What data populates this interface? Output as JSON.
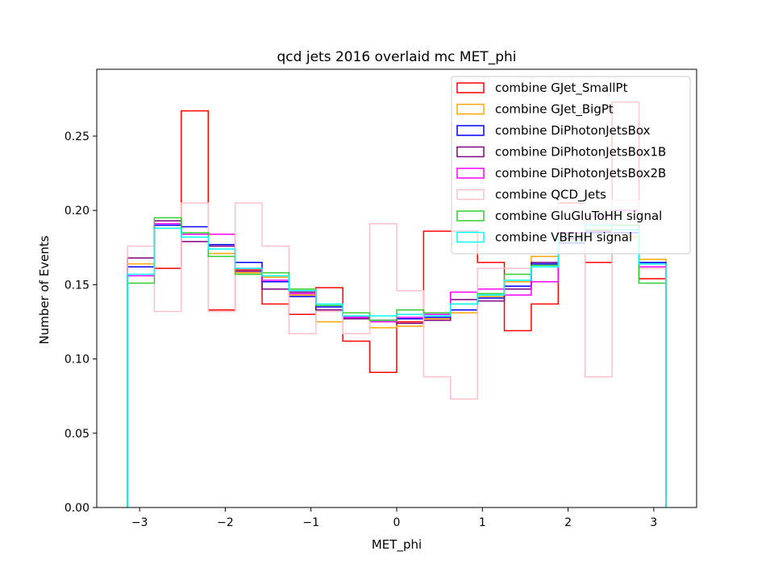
{
  "chart_data": {
    "type": "histogram-step",
    "title": "qcd jets 2016 overlaid mc MET_phi",
    "xlabel": "MET_phi",
    "ylabel": "Number of Events",
    "xlim": [
      -3.5,
      3.5
    ],
    "ylim": [
      0,
      0.295
    ],
    "grid": false,
    "legend_position": "top-right",
    "xticks": [
      -3,
      -2,
      -1,
      0,
      1,
      2,
      3
    ],
    "xtick_labels": [
      "−3",
      "−2",
      "−1",
      "0",
      "1",
      "2",
      "3"
    ],
    "yticks": [
      0.0,
      0.05,
      0.1,
      0.15,
      0.2,
      0.25
    ],
    "ytick_labels": [
      "0.00",
      "0.05",
      "0.10",
      "0.15",
      "0.20",
      "0.25"
    ],
    "bin_edges": [
      -3.1416,
      -2.8274,
      -2.5133,
      -2.1991,
      -1.885,
      -1.5708,
      -1.2566,
      -0.9425,
      -0.6283,
      -0.3142,
      0.0,
      0.3142,
      0.6283,
      0.9425,
      1.2566,
      1.5708,
      1.885,
      2.1991,
      2.5133,
      2.8274,
      3.1416
    ],
    "series": [
      {
        "name": "combine GJet_SmallPt",
        "color": "#ff0000",
        "values": [
          0.168,
          0.161,
          0.267,
          0.133,
          0.16,
          0.137,
          0.13,
          0.148,
          0.112,
          0.091,
          0.125,
          0.186,
          0.186,
          0.165,
          0.119,
          0.137,
          0.205,
          0.165,
          0.273,
          0.154
        ]
      },
      {
        "name": "combine GJet_BigPt",
        "color": "#ffa500",
        "values": [
          0.164,
          0.188,
          0.184,
          0.171,
          0.158,
          0.155,
          0.143,
          0.125,
          0.128,
          0.121,
          0.122,
          0.127,
          0.131,
          0.142,
          0.152,
          0.169,
          0.178,
          0.19,
          0.182,
          0.167
        ]
      },
      {
        "name": "combine DiPhotonJetsBox",
        "color": "#0000ff",
        "values": [
          0.162,
          0.19,
          0.189,
          0.177,
          0.165,
          0.152,
          0.142,
          0.135,
          0.128,
          0.126,
          0.127,
          0.128,
          0.133,
          0.141,
          0.149,
          0.164,
          0.178,
          0.185,
          0.185,
          0.165
        ]
      },
      {
        "name": "combine DiPhotonJetsBox1B",
        "color": "#800080",
        "values": [
          0.168,
          0.193,
          0.179,
          0.176,
          0.159,
          0.147,
          0.145,
          0.133,
          0.127,
          0.126,
          0.124,
          0.126,
          0.14,
          0.139,
          0.147,
          0.165,
          0.181,
          0.186,
          0.187,
          0.164
        ]
      },
      {
        "name": "combine DiPhotonJetsBox2B",
        "color": "#ff00ff",
        "values": [
          0.156,
          0.191,
          0.184,
          0.184,
          0.161,
          0.153,
          0.144,
          0.136,
          0.128,
          0.125,
          0.128,
          0.13,
          0.145,
          0.147,
          0.143,
          0.152,
          0.185,
          0.196,
          0.2,
          0.162
        ]
      },
      {
        "name": "combine QCD_Jets",
        "color": "#ffc0cb",
        "values": [
          0.176,
          0.132,
          0.205,
          0.132,
          0.205,
          0.176,
          0.117,
          0.132,
          0.117,
          0.191,
          0.146,
          0.088,
          0.073,
          0.161,
          0.161,
          0.162,
          0.23,
          0.088,
          0.207,
          0.161
        ]
      },
      {
        "name": "combine GluGluToHH signal",
        "color": "#32cd32",
        "values": [
          0.151,
          0.195,
          0.185,
          0.169,
          0.157,
          0.158,
          0.147,
          0.136,
          0.131,
          0.126,
          0.133,
          0.131,
          0.137,
          0.144,
          0.157,
          0.163,
          0.18,
          0.187,
          0.19,
          0.151
        ]
      },
      {
        "name": "combine VBFHH signal",
        "color": "#00ffff",
        "values": [
          0.157,
          0.188,
          0.182,
          0.174,
          0.161,
          0.156,
          0.146,
          0.137,
          0.129,
          0.129,
          0.13,
          0.129,
          0.137,
          0.143,
          0.153,
          0.162,
          0.182,
          0.19,
          0.187,
          0.164
        ]
      }
    ]
  }
}
